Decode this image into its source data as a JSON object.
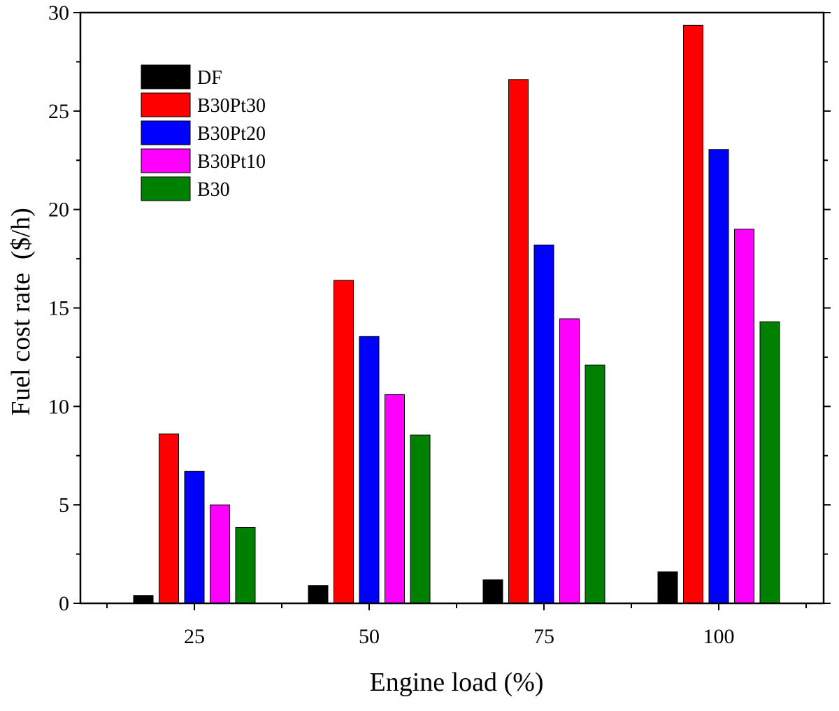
{
  "chart_data": {
    "type": "bar",
    "title": "",
    "xlabel": "Engine load (%)",
    "ylabel": "Fuel cost rate  ($/h)",
    "categories": [
      "25",
      "50",
      "75",
      "100"
    ],
    "ylim": [
      0,
      30
    ],
    "yticks": [
      0,
      5,
      10,
      15,
      20,
      25,
      30
    ],
    "legend_position": "top-left",
    "series": [
      {
        "name": "DF",
        "color": "#000000",
        "values": [
          0.4,
          0.9,
          1.2,
          1.6
        ]
      },
      {
        "name": "B30Pt30",
        "color": "#ff0000",
        "values": [
          8.6,
          16.4,
          26.6,
          29.35
        ]
      },
      {
        "name": "B30Pt20",
        "color": "#0000ff",
        "values": [
          6.7,
          13.55,
          18.2,
          23.05
        ]
      },
      {
        "name": "B30Pt10",
        "color": "#ff00ff",
        "values": [
          5.0,
          10.6,
          14.45,
          19.0
        ]
      },
      {
        "name": "B30",
        "color": "#008000",
        "values": [
          3.85,
          8.55,
          12.1,
          14.3
        ]
      }
    ]
  }
}
